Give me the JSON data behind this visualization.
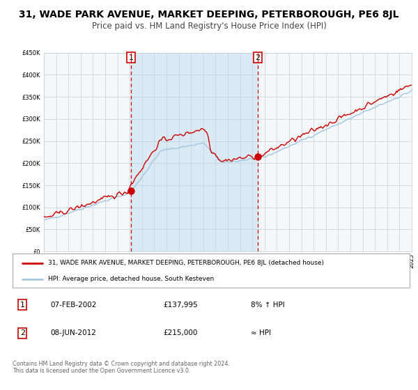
{
  "title": "31, WADE PARK AVENUE, MARKET DEEPING, PETERBOROUGH, PE6 8JL",
  "subtitle": "Price paid vs. HM Land Registry's House Price Index (HPI)",
  "legend_line1": "31, WADE PARK AVENUE, MARKET DEEPING, PETERBOROUGH, PE6 8JL (detached house)",
  "legend_line2": "HPI: Average price, detached house, South Kesteven",
  "annotation1_label": "1",
  "annotation1_date": "07-FEB-2002",
  "annotation1_price": "£137,995",
  "annotation1_hpi": "8% ↑ HPI",
  "annotation2_label": "2",
  "annotation2_date": "08-JUN-2012",
  "annotation2_price": "£215,000",
  "annotation2_hpi": "≈ HPI",
  "footer": "Contains HM Land Registry data © Crown copyright and database right 2024.\nThis data is licensed under the Open Government Licence v3.0.",
  "hpi_color": "#a8c8e0",
  "price_color": "#cc0000",
  "bg_color": "#ffffff",
  "plot_bg": "#f5f8fb",
  "shade_color": "#daeaf4",
  "grid_color": "#c8d4dc",
  "vline_color": "#cc0000",
  "ylim": [
    0,
    450000
  ],
  "yticks": [
    0,
    50000,
    100000,
    150000,
    200000,
    250000,
    300000,
    350000,
    400000,
    450000
  ],
  "sale1_year": 2002.1,
  "sale2_year": 2012.45,
  "sale1_price": 137995,
  "sale2_price": 215000
}
